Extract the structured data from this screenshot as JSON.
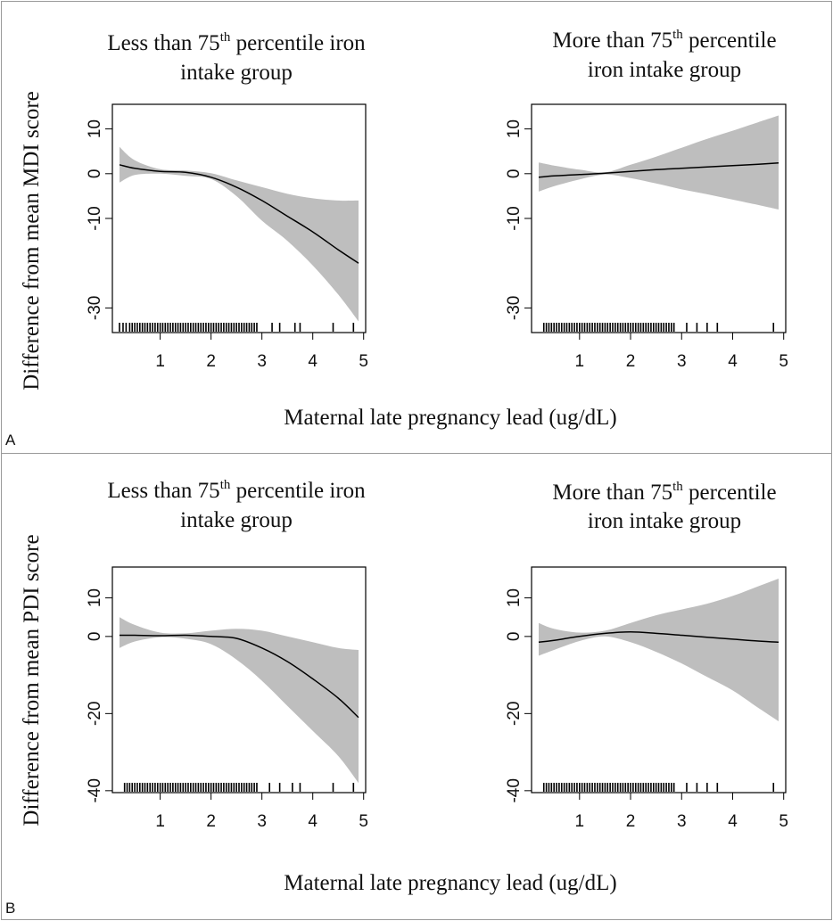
{
  "figure": {
    "x_axis_label": "Maternal late pregnancy lead (ug/dL)",
    "panels": [
      {
        "letter": "A",
        "y_axis_label": "Difference from mean MDI score"
      },
      {
        "letter": "B",
        "y_axis_label": "Difference from mean PDI score"
      }
    ],
    "colors": {
      "band": "#bebebe",
      "line": "#000000",
      "frame": "#000000",
      "panel_border": "#9a9a9a"
    }
  },
  "chart_data": [
    {
      "type": "line",
      "panel": "A",
      "title": {
        "pre": "Less than 75",
        "sup": "th",
        "post": " percentile iron",
        "line2": "intake group"
      },
      "xlabel": "Maternal late pregnancy lead (ug/dL)",
      "ylabel": "Difference from mean MDI score",
      "xlim": [
        0.2,
        4.9
      ],
      "ylim": [
        -35,
        15
      ],
      "xticks": [
        1,
        2,
        3,
        4,
        5
      ],
      "yticks": [
        10,
        0,
        -10,
        -30
      ],
      "grid": false,
      "x": [
        0.2,
        0.5,
        1.0,
        1.5,
        2.0,
        2.5,
        3.0,
        3.5,
        4.0,
        4.5,
        4.9
      ],
      "y": [
        2.0,
        1.2,
        0.5,
        0.3,
        -0.8,
        -3,
        -6,
        -9.5,
        -13,
        -17,
        -20
      ],
      "lower": [
        -2,
        -0.3,
        0,
        -0.5,
        -1.2,
        -5,
        -10.5,
        -15,
        -20.5,
        -27,
        -33
      ],
      "upper": [
        6,
        3,
        1,
        0.7,
        0.1,
        -1.5,
        -3,
        -4.5,
        -5.5,
        -6,
        -6
      ],
      "rug": [
        0.2,
        0.27,
        0.33,
        0.4,
        0.45,
        0.5,
        0.55,
        0.6,
        0.65,
        0.7,
        0.75,
        0.8,
        0.85,
        0.9,
        0.95,
        1.0,
        1.05,
        1.1,
        1.15,
        1.2,
        1.25,
        1.3,
        1.35,
        1.4,
        1.45,
        1.5,
        1.55,
        1.6,
        1.65,
        1.7,
        1.75,
        1.8,
        1.85,
        1.9,
        1.95,
        2.0,
        2.05,
        2.1,
        2.15,
        2.2,
        2.25,
        2.3,
        2.35,
        2.4,
        2.45,
        2.5,
        2.55,
        2.6,
        2.65,
        2.7,
        2.75,
        2.8,
        2.85,
        2.9,
        3.2,
        3.35,
        3.65,
        3.75,
        4.4,
        4.8
      ]
    },
    {
      "type": "line",
      "panel": "A",
      "title": {
        "pre": "More than 75",
        "sup": "th",
        "post": " percentile",
        "line2": "iron intake group"
      },
      "xlabel": "Maternal late pregnancy lead (ug/dL)",
      "ylabel": "",
      "xlim": [
        0.2,
        4.9
      ],
      "ylim": [
        -35,
        15
      ],
      "xticks": [
        1,
        2,
        3,
        4,
        5
      ],
      "yticks": [
        10,
        0,
        -10,
        -30
      ],
      "grid": false,
      "x": [
        0.2,
        0.5,
        1.0,
        1.5,
        2.0,
        2.5,
        3.0,
        3.5,
        4.0,
        4.5,
        4.9
      ],
      "y": [
        -0.8,
        -0.5,
        -0.2,
        0.1,
        0.5,
        0.9,
        1.2,
        1.5,
        1.8,
        2.1,
        2.4
      ],
      "lower": [
        -4,
        -2.8,
        -1.3,
        -0.2,
        -1,
        -2.2,
        -3.5,
        -4.6,
        -5.8,
        -7,
        -8
      ],
      "upper": [
        2.5,
        1.8,
        0.9,
        0.3,
        2,
        3.8,
        5.8,
        7.8,
        9.6,
        11.5,
        13
      ],
      "rug": [
        0.3,
        0.35,
        0.4,
        0.45,
        0.5,
        0.55,
        0.6,
        0.65,
        0.7,
        0.75,
        0.8,
        0.85,
        0.9,
        0.95,
        1.0,
        1.05,
        1.1,
        1.15,
        1.2,
        1.25,
        1.3,
        1.35,
        1.4,
        1.45,
        1.5,
        1.55,
        1.6,
        1.65,
        1.7,
        1.75,
        1.8,
        1.85,
        1.9,
        1.95,
        2.0,
        2.05,
        2.1,
        2.15,
        2.2,
        2.25,
        2.3,
        2.35,
        2.4,
        2.45,
        2.5,
        2.55,
        2.6,
        2.65,
        2.7,
        2.75,
        2.8,
        2.85,
        3.1,
        3.3,
        3.5,
        3.7,
        4.8
      ]
    },
    {
      "type": "line",
      "panel": "B",
      "title": {
        "pre": "Less than 75",
        "sup": "th",
        "post": " percentile iron",
        "line2": "intake group"
      },
      "xlabel": "Maternal late pregnancy lead (ug/dL)",
      "ylabel": "Difference from mean PDI score",
      "xlim": [
        0.2,
        4.9
      ],
      "ylim": [
        -40,
        17
      ],
      "xticks": [
        1,
        2,
        3,
        4,
        5
      ],
      "yticks": [
        10,
        0,
        -20,
        -40
      ],
      "grid": false,
      "x": [
        0.2,
        0.5,
        1.0,
        1.5,
        2.0,
        2.5,
        3.0,
        3.5,
        4.0,
        4.5,
        4.9
      ],
      "y": [
        0.3,
        0.3,
        0.2,
        0.3,
        0.0,
        -0.5,
        -3,
        -6.5,
        -11,
        -16,
        -21
      ],
      "lower": [
        -3,
        -1.3,
        -0.2,
        -0.6,
        -2,
        -6,
        -11.5,
        -18,
        -24.5,
        -31,
        -38
      ],
      "upper": [
        5,
        3,
        1,
        0.8,
        1.5,
        2,
        1.5,
        0,
        -1.5,
        -3,
        -3.5
      ],
      "rug": [
        0.3,
        0.35,
        0.4,
        0.45,
        0.5,
        0.55,
        0.6,
        0.65,
        0.7,
        0.75,
        0.8,
        0.85,
        0.9,
        0.95,
        1.0,
        1.05,
        1.1,
        1.15,
        1.2,
        1.25,
        1.3,
        1.35,
        1.4,
        1.45,
        1.5,
        1.55,
        1.6,
        1.65,
        1.7,
        1.75,
        1.8,
        1.85,
        1.9,
        1.95,
        2.0,
        2.05,
        2.1,
        2.15,
        2.2,
        2.25,
        2.3,
        2.35,
        2.4,
        2.45,
        2.5,
        2.55,
        2.6,
        2.65,
        2.7,
        2.75,
        2.8,
        2.85,
        2.9,
        3.15,
        3.35,
        3.6,
        3.75,
        4.4,
        4.8
      ]
    },
    {
      "type": "line",
      "panel": "B",
      "title": {
        "pre": "More than 75",
        "sup": "th",
        "post": " percentile",
        "line2": "iron intake group"
      },
      "xlabel": "Maternal late pregnancy lead (ug/dL)",
      "ylabel": "",
      "xlim": [
        0.2,
        4.9
      ],
      "ylim": [
        -40,
        17
      ],
      "xticks": [
        1,
        2,
        3,
        4,
        5
      ],
      "yticks": [
        10,
        0,
        -20,
        -40
      ],
      "grid": false,
      "x": [
        0.2,
        0.5,
        1.0,
        1.5,
        2.0,
        2.5,
        3.0,
        3.5,
        4.0,
        4.5,
        4.9
      ],
      "y": [
        -1.5,
        -1,
        0,
        0.8,
        1.2,
        0.8,
        0.3,
        -0.2,
        -0.7,
        -1.2,
        -1.5
      ],
      "lower": [
        -5,
        -3.5,
        -1.2,
        0,
        -1.5,
        -4,
        -7,
        -10.5,
        -14,
        -18.5,
        -22
      ],
      "upper": [
        3.5,
        2,
        1,
        1.5,
        3.5,
        5.5,
        7,
        8.5,
        10.5,
        13,
        15
      ],
      "rug": [
        0.3,
        0.35,
        0.4,
        0.45,
        0.5,
        0.55,
        0.6,
        0.65,
        0.7,
        0.75,
        0.8,
        0.85,
        0.9,
        0.95,
        1.0,
        1.05,
        1.1,
        1.15,
        1.2,
        1.25,
        1.3,
        1.35,
        1.4,
        1.45,
        1.5,
        1.55,
        1.6,
        1.65,
        1.7,
        1.75,
        1.8,
        1.85,
        1.9,
        1.95,
        2.0,
        2.05,
        2.1,
        2.15,
        2.2,
        2.25,
        2.3,
        2.35,
        2.4,
        2.45,
        2.5,
        2.55,
        2.6,
        2.65,
        2.7,
        2.75,
        2.8,
        2.85,
        3.1,
        3.3,
        3.5,
        3.7,
        4.8
      ]
    }
  ]
}
